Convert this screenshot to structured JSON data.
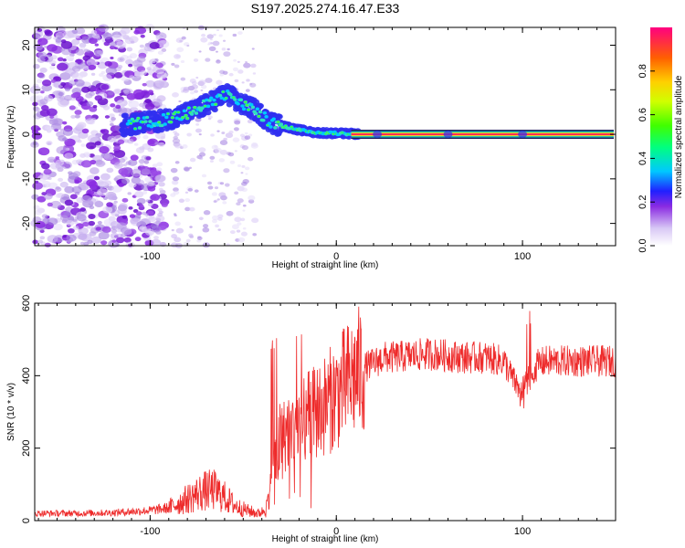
{
  "figure_title": "S197.2025.274.16.47.E33",
  "colors": {
    "snr_line": "#ee2a2a",
    "ridge_core": "#ff2a55",
    "frame": "#000000",
    "background": "#ffffff"
  },
  "chart_data": [
    {
      "type": "heatmap",
      "name": "spectrogram",
      "title": "S197.2025.274.16.47.E33",
      "xlabel": "Height of straight line (km)",
      "ylabel": "Frequency (Hz)",
      "xlim": [
        -162,
        150
      ],
      "ylim": [
        -25,
        24
      ],
      "xticks": [
        -100,
        0,
        100
      ],
      "yticks": [
        -20,
        -10,
        0,
        10,
        20
      ],
      "ridge": {
        "x": [
          -115,
          -105,
          -95,
          -85,
          -75,
          -68,
          -62,
          -58,
          -54,
          -50,
          -46,
          -42,
          -38,
          -34,
          -30,
          -25,
          -20,
          -15,
          -10,
          -5,
          0,
          10,
          20,
          40,
          60,
          80,
          100,
          120,
          150
        ],
        "frequency": [
          2,
          2.5,
          3,
          4,
          5.5,
          7,
          8.5,
          9,
          7.5,
          6.5,
          6,
          5,
          3.5,
          2.5,
          2,
          1.5,
          1,
          0.6,
          0.4,
          0.3,
          0.2,
          0.1,
          0,
          0,
          0,
          0,
          0,
          0,
          0
        ]
      },
      "colorbar": {
        "label": "Normalized spectral amplitude",
        "range": [
          0,
          1
        ],
        "ticks": [
          0.0,
          0.2,
          0.4,
          0.6,
          0.8
        ],
        "tick_labels": [
          "0.0",
          "0.2",
          "0.4",
          "0.6",
          "0.8"
        ]
      }
    },
    {
      "type": "line",
      "name": "snr",
      "xlabel": "Height of straight line (km)",
      "ylabel": "SNR (10 * v/v)",
      "xlim": [
        -162,
        150
      ],
      "ylim": [
        0,
        600
      ],
      "xticks": [
        -100,
        0,
        100
      ],
      "yticks": [
        0,
        200,
        400,
        600
      ],
      "series": [
        {
          "name": "SNR",
          "x": [
            -162,
            -140,
            -120,
            -100,
            -90,
            -80,
            -72,
            -66,
            -60,
            -54,
            -48,
            -42,
            -38,
            -34,
            -30,
            -26,
            -22,
            -18,
            -14,
            -10,
            -6,
            -2,
            2,
            6,
            10,
            14,
            18,
            22,
            26,
            30,
            40,
            50,
            60,
            70,
            80,
            90,
            96,
            100,
            104,
            108,
            112,
            120,
            130,
            140,
            150
          ],
          "values": [
            20,
            20,
            22,
            28,
            35,
            60,
            80,
            85,
            65,
            40,
            28,
            20,
            30,
            120,
            220,
            250,
            260,
            270,
            290,
            300,
            320,
            340,
            360,
            380,
            400,
            420,
            430,
            440,
            450,
            450,
            455,
            460,
            455,
            450,
            450,
            440,
            380,
            360,
            400,
            430,
            440,
            440,
            440,
            440,
            440
          ]
        }
      ]
    }
  ]
}
